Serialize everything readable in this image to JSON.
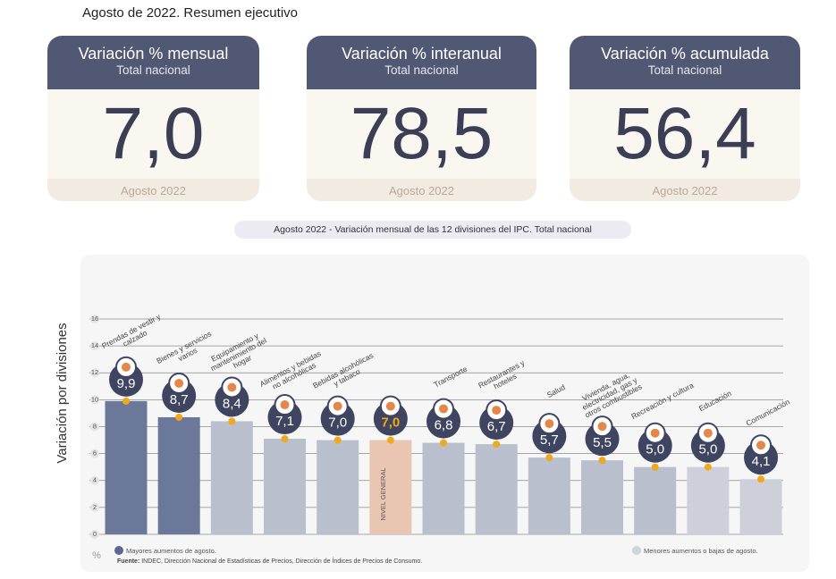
{
  "header": {
    "title": "Agosto de 2022. Resumen ejecutivo"
  },
  "cards": [
    {
      "title": "Variación % mensual",
      "subtitle": "Total nacional",
      "value": "7,0",
      "footer": "Agosto 2022"
    },
    {
      "title": "Variación % interanual",
      "subtitle": "Total nacional",
      "value": "78,5",
      "footer": "Agosto 2022"
    },
    {
      "title": "Variación % acumulada",
      "subtitle": "Total nacional",
      "value": "56,4",
      "footer": "Agosto 2022"
    }
  ],
  "chart_data": {
    "type": "bar",
    "title": "Agosto 2022 - Variación mensual de las 12 divisiones del IPC. Total nacional",
    "y_label": "Variación por divisiones",
    "unit": "%",
    "categories": [
      "Prendas de vestir y calzado",
      "Bienes y servicios varios",
      "Equipamiento y mantenimiento del hogar",
      "Alimentos y bebidas no alcohólicas",
      "Bebidas alcohólicas y tabaco",
      "NIVEL GENERAL",
      "Transporte",
      "Restaurantes y hoteles",
      "Salud",
      "Vivienda, agua, electricidad, gas y otros combustibles",
      "Recreación y cultura",
      "Educación",
      "Comunicación"
    ],
    "values": [
      9.9,
      8.7,
      8.4,
      7.1,
      7.0,
      7.0,
      6.8,
      6.7,
      5.7,
      5.5,
      5.0,
      5.0,
      4.1
    ],
    "value_labels": [
      "9,9",
      "8,7",
      "8,4",
      "7,1",
      "7,0",
      "7,0",
      "6,8",
      "6,7",
      "5,7",
      "5,5",
      "5,0",
      "5,0",
      "4,1"
    ],
    "colors": [
      "#6b7899",
      "#6b7899",
      "#b9bfcd",
      "#b9bfcd",
      "#b9bfcd",
      "#e9c6b1",
      "#b9bfcd",
      "#b9bfcd",
      "#b9bfcd",
      "#b9bfcd",
      "#b9bfcd",
      "#cdd0d8",
      "#cdd0d8"
    ],
    "highlight": 5,
    "ylim": [
      0,
      16
    ],
    "yticks": [
      0,
      2,
      4,
      6,
      8,
      10,
      12,
      14,
      16
    ],
    "grid": true,
    "legend": [
      {
        "label": "Mayores aumentos de agosto.",
        "color": "#5b6890"
      },
      {
        "label": "Menores aumentos o bajas de agosto.",
        "color": "#d0d3da"
      }
    ],
    "source_label": "Fuente:",
    "source": "INDEC, Dirección Nacional de Estadísticas de Precios, Dirección de Índices de Precios de Consumo."
  }
}
